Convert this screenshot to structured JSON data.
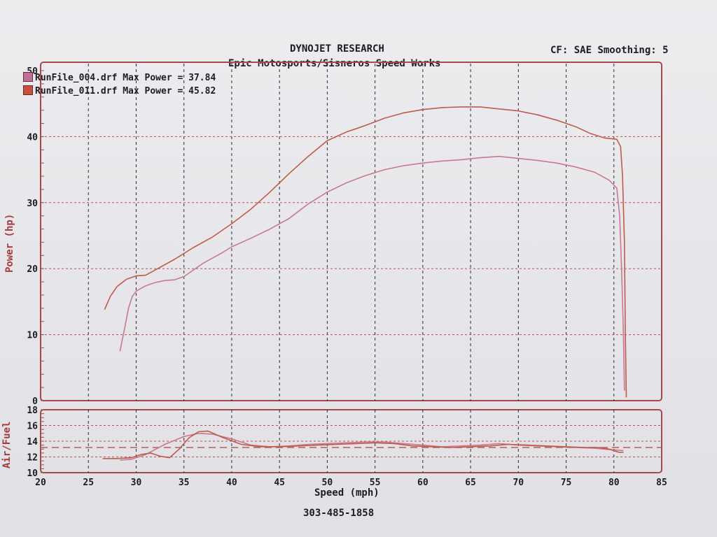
{
  "header": {
    "title": "DYNOJET RESEARCH",
    "subtitle": "Epic Motosports/Sisneros Speed Works",
    "cf_info": "CF: SAE  Smoothing: 5"
  },
  "footer": {
    "phone": "303-485-1858"
  },
  "colors": {
    "frame": "#a54a48",
    "grid": "#b85050",
    "run_004": "#c87890",
    "run_011": "#c05a4a",
    "swatch_004": "#c07098",
    "swatch_011": "#c8503c"
  },
  "legend": [
    {
      "label": "RunFile_004.drf Max Power = 37.84"
    },
    {
      "label": "RunFile_011.drf Max Power = 45.82"
    }
  ],
  "chart_data": [
    {
      "type": "line",
      "xlabel": "Speed (mph)",
      "ylabel": "Power (hp)",
      "xlim": [
        20,
        85
      ],
      "ylim": [
        0,
        50
      ],
      "x_ticks": [
        20,
        25,
        30,
        35,
        40,
        45,
        50,
        55,
        60,
        65,
        70,
        75,
        80,
        85
      ],
      "y_ticks": [
        0,
        10,
        20,
        30,
        40,
        50
      ],
      "grid": true,
      "legend_position": "top-left",
      "series": [
        {
          "name": "RunFile_004.drf",
          "points": [
            [
              28.3,
              7.5
            ],
            [
              28.8,
              11
            ],
            [
              29.2,
              14
            ],
            [
              29.6,
              15.8
            ],
            [
              30,
              16.6
            ],
            [
              31,
              17.4
            ],
            [
              32,
              17.9
            ],
            [
              33,
              18.2
            ],
            [
              34,
              18.3
            ],
            [
              35,
              18.8
            ],
            [
              36,
              19.8
            ],
            [
              37,
              20.8
            ],
            [
              38,
              21.6
            ],
            [
              39,
              22.4
            ],
            [
              40,
              23.3
            ],
            [
              42,
              24.6
            ],
            [
              44,
              26
            ],
            [
              46,
              27.6
            ],
            [
              48,
              29.8
            ],
            [
              50,
              31.6
            ],
            [
              52,
              33
            ],
            [
              54,
              34.1
            ],
            [
              56,
              35
            ],
            [
              58,
              35.6
            ],
            [
              60,
              36
            ],
            [
              62,
              36.3
            ],
            [
              64,
              36.5
            ],
            [
              66,
              36.8
            ],
            [
              68,
              37
            ],
            [
              70,
              36.7
            ],
            [
              72,
              36.4
            ],
            [
              74,
              36
            ],
            [
              76,
              35.4
            ],
            [
              78,
              34.6
            ],
            [
              79.5,
              33.4
            ],
            [
              80.3,
              32.2
            ],
            [
              80.6,
              28
            ],
            [
              80.8,
              20
            ],
            [
              81,
              10
            ],
            [
              81.1,
              1.5
            ]
          ]
        },
        {
          "name": "RunFile_011.drf",
          "points": [
            [
              26.7,
              13.8
            ],
            [
              27.3,
              15.8
            ],
            [
              28,
              17.3
            ],
            [
              29,
              18.4
            ],
            [
              30,
              18.9
            ],
            [
              31,
              19
            ],
            [
              32,
              19.8
            ],
            [
              34,
              21.4
            ],
            [
              36,
              23.2
            ],
            [
              38,
              24.8
            ],
            [
              40,
              26.8
            ],
            [
              42,
              29
            ],
            [
              44,
              31.6
            ],
            [
              46,
              34.4
            ],
            [
              48,
              37
            ],
            [
              50,
              39.4
            ],
            [
              52,
              40.7
            ],
            [
              54,
              41.7
            ],
            [
              56,
              42.8
            ],
            [
              58,
              43.6
            ],
            [
              60,
              44.1
            ],
            [
              62,
              44.4
            ],
            [
              64,
              44.5
            ],
            [
              66,
              44.5
            ],
            [
              68,
              44.2
            ],
            [
              70,
              43.9
            ],
            [
              72,
              43.3
            ],
            [
              74,
              42.5
            ],
            [
              76,
              41.5
            ],
            [
              77.5,
              40.5
            ],
            [
              79,
              39.8
            ],
            [
              80.3,
              39.6
            ],
            [
              80.7,
              38.5
            ],
            [
              80.9,
              34
            ],
            [
              81.1,
              24
            ],
            [
              81.2,
              10
            ],
            [
              81.3,
              0.5
            ]
          ]
        }
      ]
    },
    {
      "type": "line",
      "xlabel": "Speed (mph)",
      "ylabel": "Air/Fuel",
      "xlim": [
        20,
        85
      ],
      "ylim": [
        10,
        18
      ],
      "x_ticks": [
        20,
        25,
        30,
        35,
        40,
        45,
        50,
        55,
        60,
        65,
        70,
        75,
        80,
        85
      ],
      "y_ticks": [
        10,
        12,
        14,
        16,
        18
      ],
      "grid": true,
      "reference_line": 13.2,
      "series": [
        {
          "name": "RunFile_004.drf",
          "points": [
            [
              28.3,
              11.6
            ],
            [
              29.5,
              11.7
            ],
            [
              31,
              12.3
            ],
            [
              33,
              13.6
            ],
            [
              35,
              14.6
            ],
            [
              36.5,
              15
            ],
            [
              38,
              14.9
            ],
            [
              40,
              14.3
            ],
            [
              42,
              13.5
            ],
            [
              44,
              13.3
            ],
            [
              46,
              13.4
            ],
            [
              48,
              13.6
            ],
            [
              50,
              13.7
            ],
            [
              52,
              13.8
            ],
            [
              54,
              13.9
            ],
            [
              56,
              13.9
            ],
            [
              58,
              13.7
            ],
            [
              60,
              13.5
            ],
            [
              62,
              13.3
            ],
            [
              64,
              13.4
            ],
            [
              66,
              13.5
            ],
            [
              68,
              13.7
            ],
            [
              70,
              13.5
            ],
            [
              72,
              13.4
            ],
            [
              74,
              13.3
            ],
            [
              76,
              13.2
            ],
            [
              78,
              13.1
            ],
            [
              79,
              13
            ],
            [
              80,
              12.9
            ],
            [
              81,
              12.8
            ]
          ]
        },
        {
          "name": "RunFile_011.drf",
          "points": [
            [
              26.5,
              11.8
            ],
            [
              28,
              11.8
            ],
            [
              29.5,
              11.9
            ],
            [
              30.5,
              12.3
            ],
            [
              31.5,
              12.5
            ],
            [
              32.5,
              12.1
            ],
            [
              33.5,
              11.9
            ],
            [
              34.5,
              13
            ],
            [
              35.5,
              14.4
            ],
            [
              36.5,
              15.2
            ],
            [
              37.5,
              15.3
            ],
            [
              39,
              14.5
            ],
            [
              41,
              13.6
            ],
            [
              43,
              13.3
            ],
            [
              45,
              13.3
            ],
            [
              47,
              13.4
            ],
            [
              49,
              13.5
            ],
            [
              51,
              13.6
            ],
            [
              53,
              13.7
            ],
            [
              55,
              13.8
            ],
            [
              57,
              13.7
            ],
            [
              59,
              13.4
            ],
            [
              61,
              13.3
            ],
            [
              63,
              13.2
            ],
            [
              65,
              13.3
            ],
            [
              67,
              13.4
            ],
            [
              69,
              13.6
            ],
            [
              71,
              13.5
            ],
            [
              73,
              13.4
            ],
            [
              75,
              13.3
            ],
            [
              77,
              13.2
            ],
            [
              78.5,
              13.2
            ],
            [
              79.5,
              13
            ],
            [
              80.5,
              12.6
            ],
            [
              81,
              12.6
            ]
          ]
        }
      ]
    }
  ]
}
